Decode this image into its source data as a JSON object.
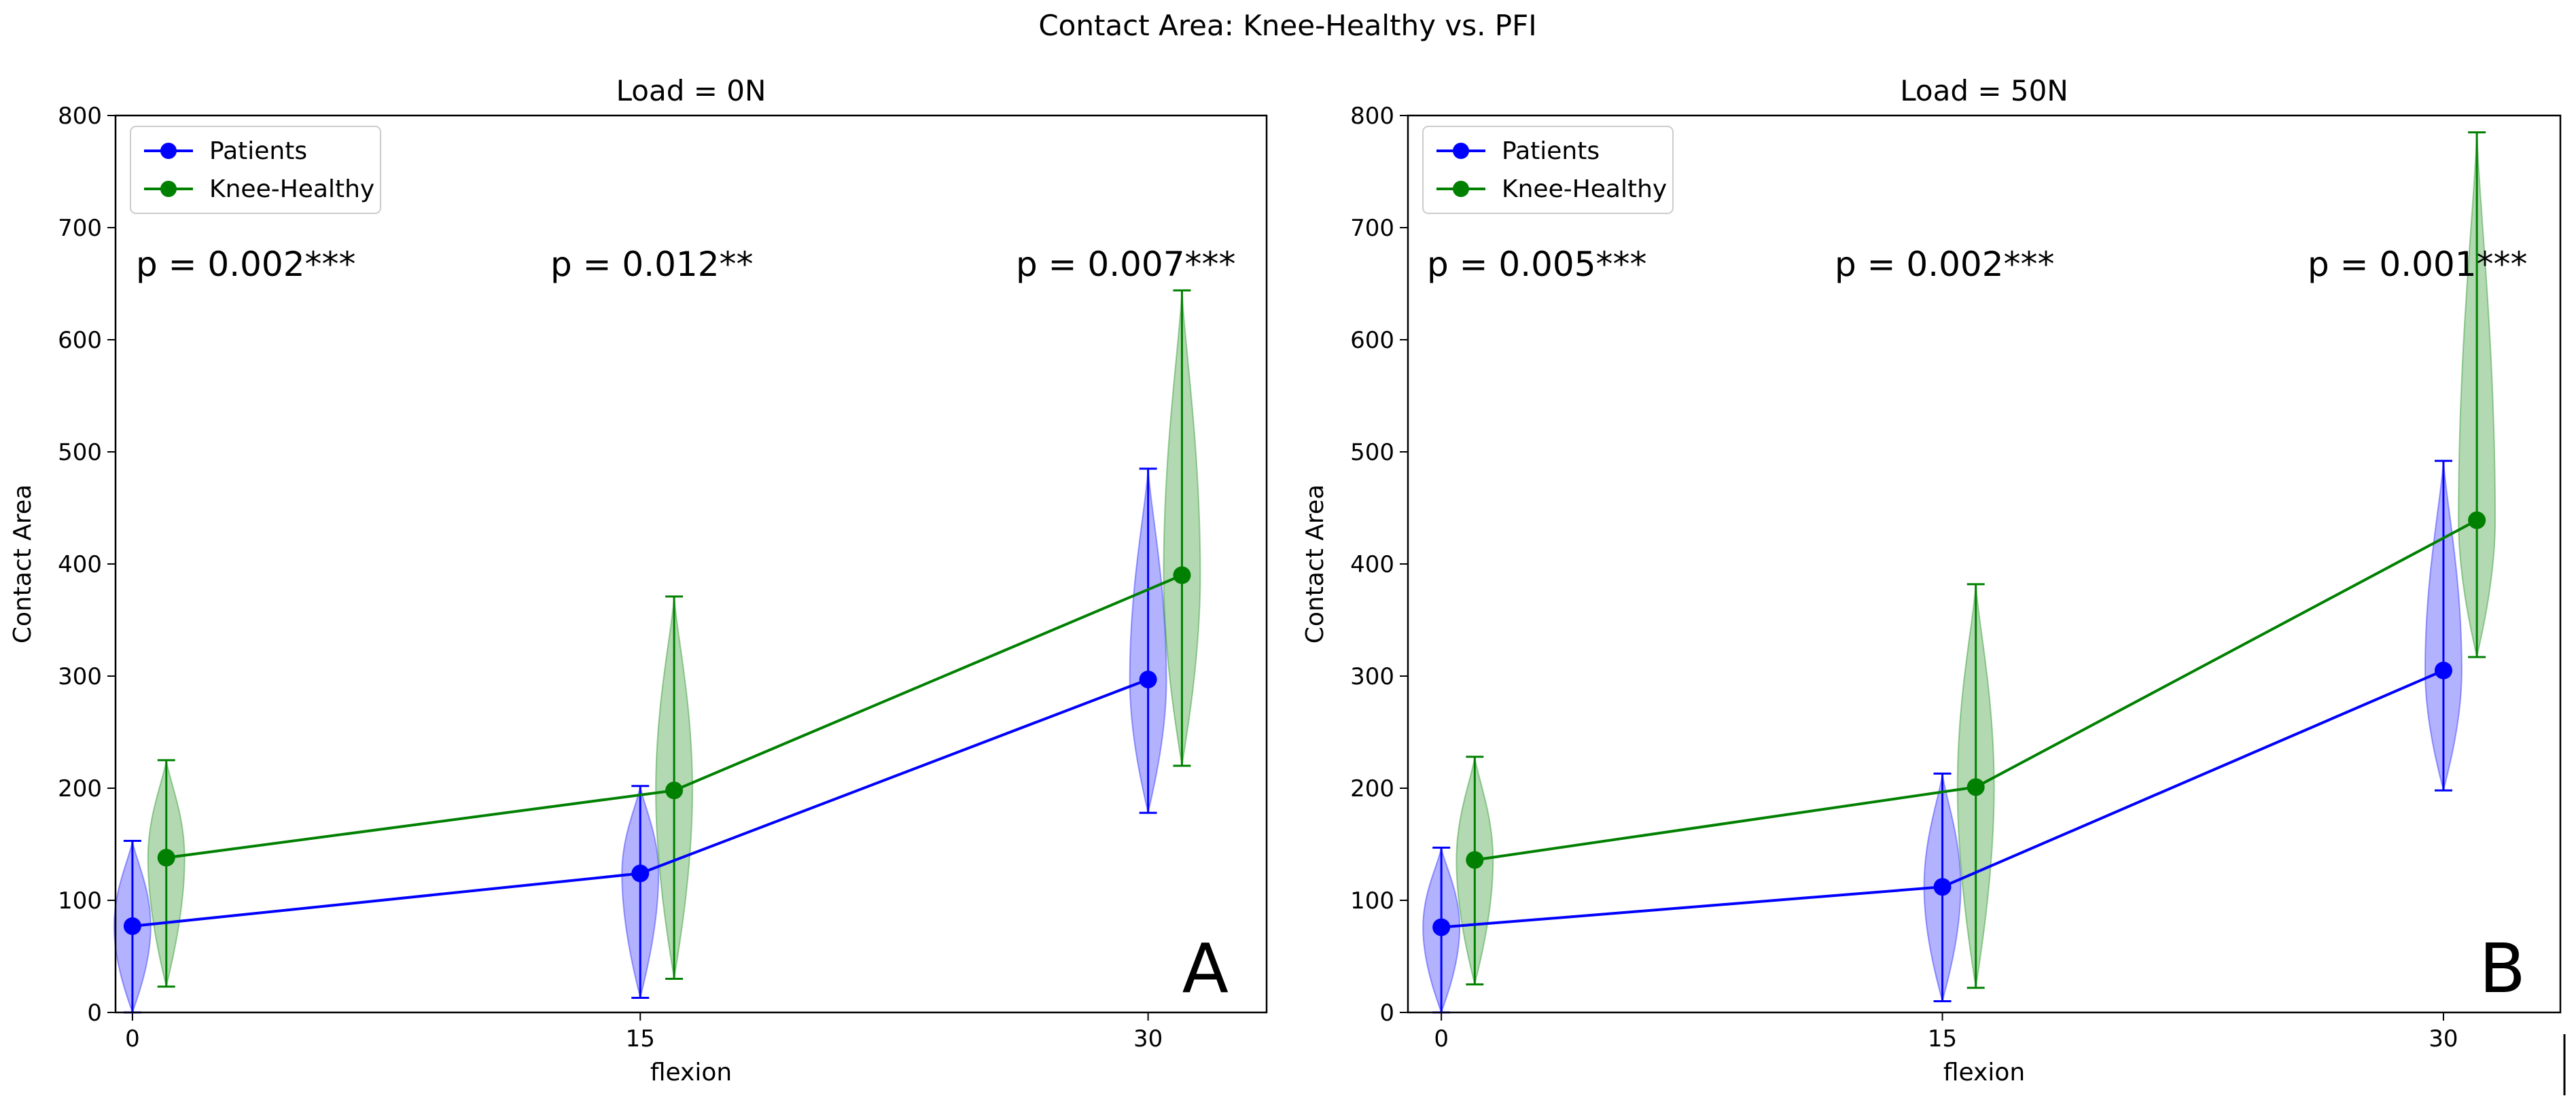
{
  "figure": {
    "title": "Contact Area: Knee-Healthy vs. PFI"
  },
  "colors": {
    "patients": "#0000ff",
    "healthy": "#008000"
  },
  "chart_data": [
    {
      "type": "line",
      "title": "Load = 0N",
      "panel_label": "A",
      "xlabel": "flexion",
      "ylabel": "Contact Area",
      "xlim": [
        -0.5,
        33.5
      ],
      "ylim": [
        0,
        800
      ],
      "x_ticks": [
        0,
        15,
        30
      ],
      "y_ticks": [
        0,
        100,
        200,
        300,
        400,
        500,
        600,
        700,
        800
      ],
      "legend": [
        "Patients",
        "Knee-Healthy"
      ],
      "legend_position": "top-left",
      "series": [
        {
          "name": "Patients",
          "x": [
            0,
            15,
            30
          ],
          "values": [
            77,
            124,
            297
          ],
          "min": [
            0,
            13,
            178
          ],
          "max": [
            153,
            202,
            485
          ]
        },
        {
          "name": "Knee-Healthy",
          "x": [
            1,
            16,
            31
          ],
          "values": [
            138,
            198,
            390
          ],
          "min": [
            23,
            30,
            220
          ],
          "max": [
            225,
            371,
            644
          ]
        }
      ],
      "p_values": [
        "p = 0.002***",
        "p = 0.012**",
        "p = 0.007***"
      ]
    },
    {
      "type": "line",
      "title": "Load = 50N",
      "panel_label": "B",
      "xlabel": "flexion",
      "ylabel": "Contact Area",
      "xlim": [
        -1,
        33.5
      ],
      "ylim": [
        0,
        800
      ],
      "x_ticks": [
        0,
        15,
        30
      ],
      "y_ticks": [
        0,
        100,
        200,
        300,
        400,
        500,
        600,
        700,
        800
      ],
      "legend": [
        "Patients",
        "Knee-Healthy"
      ],
      "legend_position": "top-left",
      "series": [
        {
          "name": "Patients",
          "x": [
            0,
            15,
            30
          ],
          "values": [
            76,
            112,
            305
          ],
          "min": [
            0,
            10,
            198
          ],
          "max": [
            147,
            213,
            492
          ]
        },
        {
          "name": "Knee-Healthy",
          "x": [
            1,
            16,
            31
          ],
          "values": [
            136,
            201,
            439
          ],
          "min": [
            25,
            22,
            317
          ],
          "max": [
            228,
            382,
            785
          ]
        }
      ],
      "p_values": [
        "p = 0.005***",
        "p = 0.002***",
        "p = 0.001***"
      ]
    }
  ]
}
